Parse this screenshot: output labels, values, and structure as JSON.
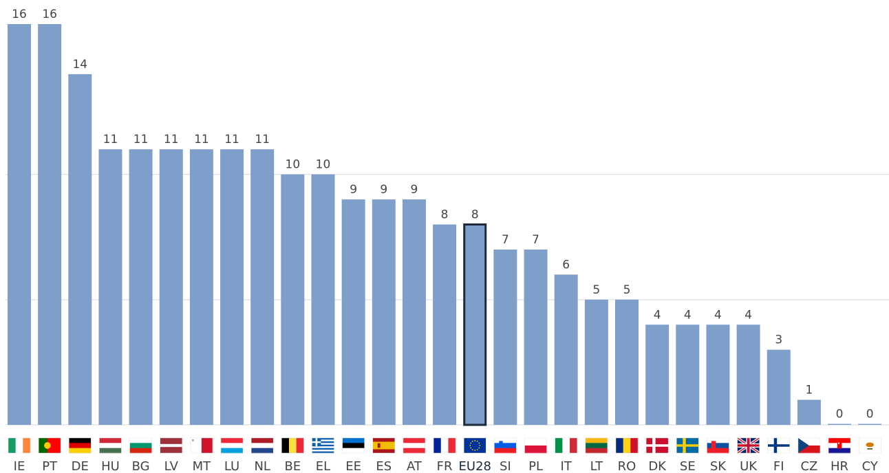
{
  "chart_data": {
    "type": "bar",
    "categories": [
      "IE",
      "PT",
      "DE",
      "HU",
      "BG",
      "LV",
      "MT",
      "LU",
      "NL",
      "BE",
      "EL",
      "EE",
      "ES",
      "AT",
      "FR",
      "EU28",
      "SI",
      "PL",
      "IT",
      "LT",
      "RO",
      "DK",
      "SE",
      "SK",
      "UK",
      "FI",
      "CZ",
      "HR",
      "CY"
    ],
    "values": [
      16,
      16,
      14,
      11,
      11,
      11,
      11,
      11,
      11,
      10,
      10,
      9,
      9,
      9,
      8,
      8,
      7,
      7,
      6,
      5,
      5,
      4,
      4,
      4,
      4,
      3,
      1,
      0,
      0
    ],
    "highlight": "EU28",
    "ylim": [
      0,
      16
    ],
    "gridlines": [
      0,
      5,
      10
    ],
    "grid": true,
    "legend": "none",
    "flags": true,
    "colors": {
      "bar": "#7f9fcb",
      "highlight_border": "#1c2a3a",
      "grid": "#d9d9d9",
      "label": "#444444"
    }
  }
}
